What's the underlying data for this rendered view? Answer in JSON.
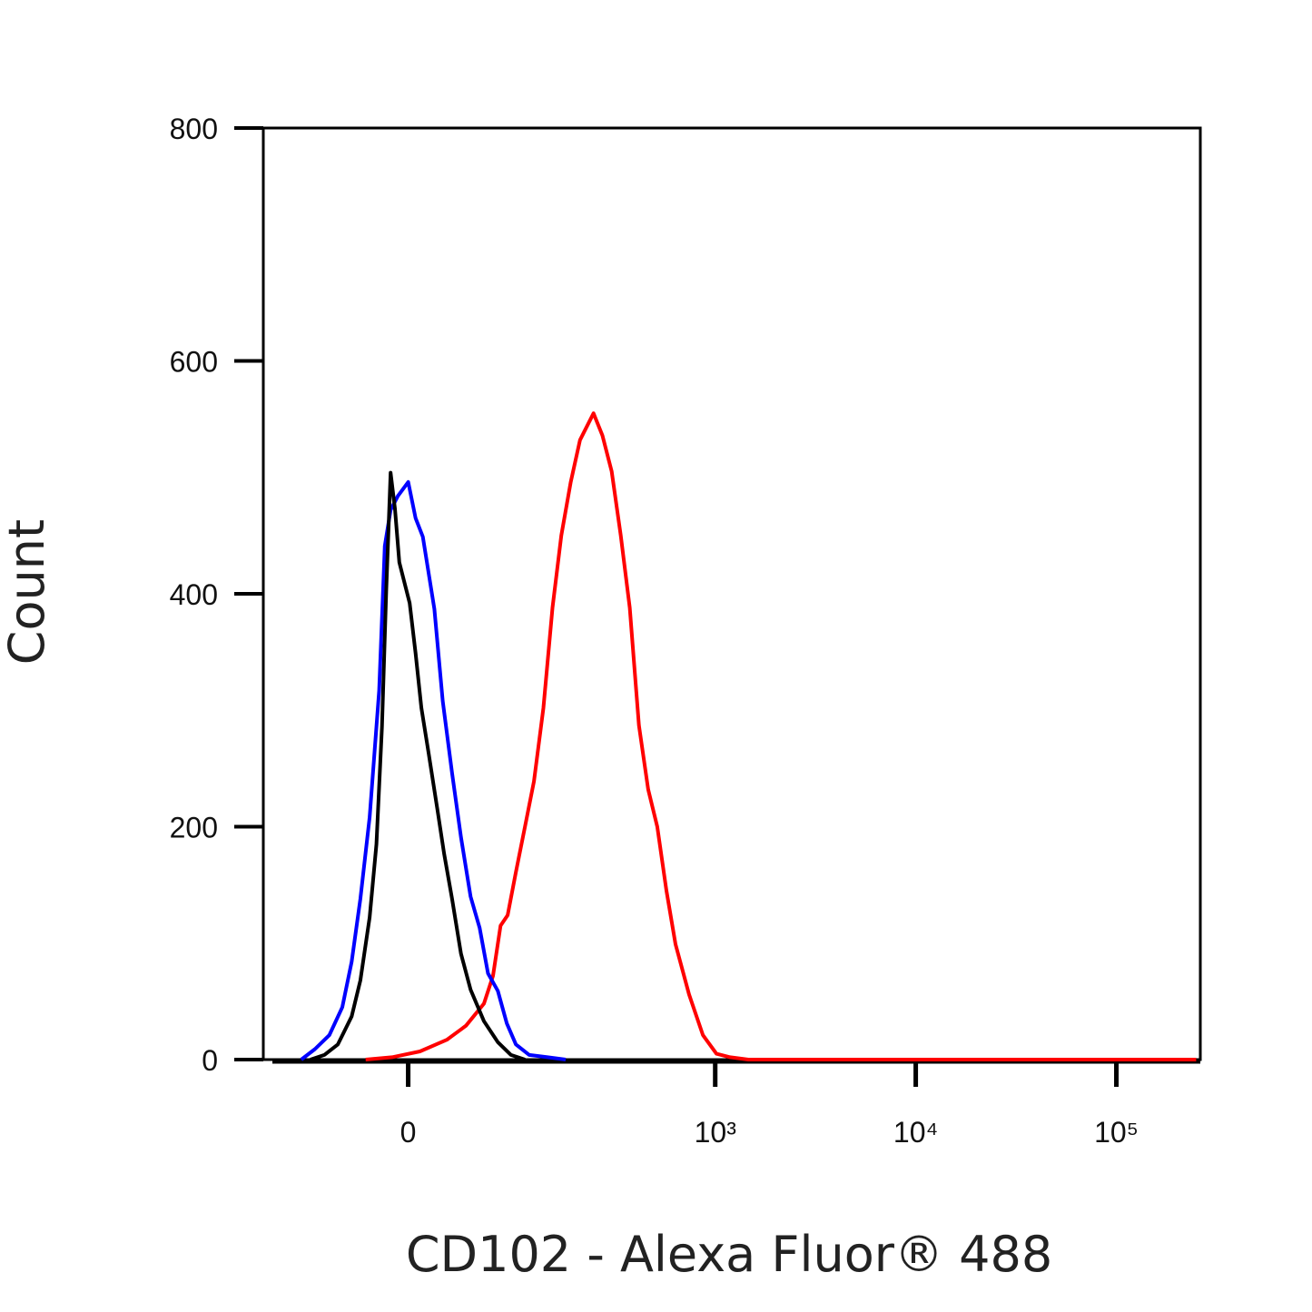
{
  "chart_data": {
    "type": "line",
    "x_label": "CD102 - Alexa Fluor® 488",
    "y_label": "Count",
    "xscale": "arcsinh",
    "xscale_cofactor": 59,
    "xlim": [
      -150,
      262144
    ],
    "xticks": [
      {
        "value": 0,
        "label": "0"
      },
      {
        "value": 1000,
        "label": "10³"
      },
      {
        "value": 10000,
        "label": "10⁴"
      },
      {
        "value": 100000,
        "label": "10⁵"
      }
    ],
    "ylim": [
      0,
      800
    ],
    "yticks": [
      0,
      200,
      400,
      600,
      800
    ],
    "series": [
      {
        "color": "#ff0000",
        "x": [
          -30,
          -11,
          8,
          27,
          42,
          58,
          67,
          75,
          83,
          93,
          105,
          118,
          133,
          149,
          166,
          186,
          208,
          244,
          271,
          302,
          336,
          373,
          415,
          462,
          513,
          570,
          633,
          740,
          868,
          1015,
          1186,
          1463,
          3000,
          250000
        ],
        "values": [
          0,
          2,
          7,
          17,
          29,
          48,
          72,
          115,
          124,
          161,
          200,
          239,
          302,
          388,
          450,
          496,
          532,
          555,
          536,
          505,
          450,
          388,
          287,
          232,
          200,
          145,
          99,
          56,
          21,
          5,
          2,
          0,
          0,
          0
        ]
      },
      {
        "color": "#0000ff",
        "x": [
          -92,
          -76,
          -61,
          -49,
          -41,
          -34,
          -27,
          -20,
          -16,
          -12,
          -7,
          0,
          5,
          10,
          18,
          24,
          31,
          38,
          46,
          54,
          62,
          72,
          82,
          93,
          111,
          140,
          175
        ],
        "values": [
          0,
          9,
          21,
          45,
          84,
          138,
          208,
          317,
          441,
          472,
          484,
          496,
          465,
          449,
          387,
          308,
          246,
          191,
          140,
          113,
          74,
          59,
          31,
          13,
          4,
          2,
          0
        ]
      },
      {
        "color": "#000000",
        "x": [
          -81,
          -66,
          -53,
          -41,
          -34,
          -27,
          -22,
          -18,
          -15,
          -12,
          -9,
          -6,
          1,
          5,
          9,
          14,
          20,
          25,
          31,
          38,
          46,
          58,
          72,
          87,
          105
        ],
        "values": [
          0,
          4,
          13,
          37,
          68,
          122,
          185,
          286,
          403,
          504,
          473,
          427,
          392,
          349,
          302,
          263,
          216,
          177,
          138,
          91,
          60,
          33,
          15,
          4,
          0
        ]
      }
    ]
  }
}
